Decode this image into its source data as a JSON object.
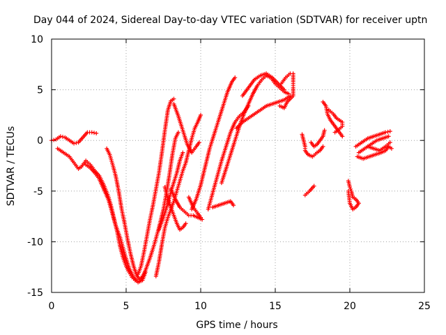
{
  "chart_data": {
    "type": "scatter",
    "title": "Day 044 of 2024, Sidereal Day-to-day VTEC variation (SDTVAR) for receiver uptn",
    "xlabel": "GPS time / hours",
    "ylabel": "SDTVAR / TECUs",
    "xlim": [
      0,
      25
    ],
    "ylim": [
      -15,
      10
    ],
    "xticks": [
      "0",
      "5",
      "10",
      "15",
      "20",
      "25"
    ],
    "yticks": [
      "10",
      "5",
      "0",
      "-5",
      "-10",
      "-15"
    ],
    "grid": true,
    "marker": "+",
    "color": "#ff0000",
    "series": [
      {
        "points": [
          [
            0.0,
            0.0
          ],
          [
            0.3,
            0.1
          ],
          [
            0.6,
            0.4
          ],
          [
            0.9,
            0.3
          ],
          [
            1.2,
            0.0
          ],
          [
            1.5,
            -0.3
          ],
          [
            1.8,
            -0.2
          ],
          [
            2.1,
            0.3
          ],
          [
            2.4,
            0.8
          ],
          [
            2.7,
            0.8
          ],
          [
            3.0,
            0.7
          ]
        ]
      },
      {
        "points": [
          [
            0.4,
            -0.8
          ],
          [
            0.8,
            -1.2
          ],
          [
            1.2,
            -1.6
          ],
          [
            1.5,
            -2.2
          ],
          [
            1.8,
            -2.8
          ],
          [
            2.0,
            -2.6
          ],
          [
            2.3,
            -2.0
          ],
          [
            2.6,
            -2.4
          ],
          [
            2.9,
            -3.0
          ],
          [
            3.2,
            -3.5
          ],
          [
            3.5,
            -4.4
          ],
          [
            3.8,
            -5.5
          ],
          [
            4.0,
            -6.5
          ],
          [
            4.2,
            -7.8
          ],
          [
            4.4,
            -9.0
          ],
          [
            4.6,
            -10.5
          ],
          [
            4.8,
            -11.6
          ],
          [
            5.0,
            -12.4
          ],
          [
            5.2,
            -13.0
          ],
          [
            5.4,
            -13.5
          ],
          [
            5.6,
            -13.8
          ]
        ]
      },
      {
        "points": [
          [
            2.3,
            -2.4
          ],
          [
            2.6,
            -2.7
          ],
          [
            2.9,
            -3.2
          ],
          [
            3.2,
            -3.8
          ],
          [
            3.5,
            -4.8
          ],
          [
            3.8,
            -5.8
          ],
          [
            4.0,
            -6.8
          ],
          [
            4.3,
            -8.4
          ],
          [
            4.6,
            -9.6
          ],
          [
            4.9,
            -11.2
          ],
          [
            5.2,
            -12.6
          ],
          [
            5.5,
            -13.5
          ],
          [
            5.8,
            -14.0
          ],
          [
            6.1,
            -13.8
          ],
          [
            6.3,
            -13.0
          ]
        ]
      },
      {
        "points": [
          [
            3.7,
            -0.8
          ],
          [
            3.9,
            -1.4
          ],
          [
            4.1,
            -2.4
          ],
          [
            4.3,
            -3.5
          ],
          [
            4.5,
            -5.0
          ],
          [
            4.7,
            -6.8
          ],
          [
            4.9,
            -8.2
          ],
          [
            5.1,
            -9.8
          ],
          [
            5.3,
            -11.2
          ],
          [
            5.5,
            -12.4
          ],
          [
            5.7,
            -13.3
          ],
          [
            5.9,
            -13.7
          ],
          [
            6.1,
            -13.4
          ]
        ]
      },
      {
        "points": [
          [
            5.8,
            -13.2
          ],
          [
            6.0,
            -12.4
          ],
          [
            6.2,
            -11.0
          ],
          [
            6.4,
            -9.4
          ],
          [
            6.6,
            -7.8
          ],
          [
            6.8,
            -6.4
          ],
          [
            7.0,
            -4.8
          ],
          [
            7.2,
            -3.2
          ],
          [
            7.4,
            -1.2
          ],
          [
            7.6,
            1.0
          ],
          [
            7.8,
            3.0
          ],
          [
            8.0,
            3.9
          ],
          [
            8.2,
            4.1
          ]
        ]
      },
      {
        "points": [
          [
            6.0,
            -13.8
          ],
          [
            6.3,
            -12.8
          ],
          [
            6.6,
            -11.6
          ],
          [
            6.9,
            -10.2
          ],
          [
            7.2,
            -8.6
          ],
          [
            7.5,
            -6.8
          ],
          [
            7.7,
            -5.2
          ],
          [
            7.9,
            -3.4
          ],
          [
            8.1,
            -1.4
          ],
          [
            8.3,
            0.2
          ],
          [
            8.5,
            0.8
          ]
        ]
      },
      {
        "points": [
          [
            7.0,
            -13.4
          ],
          [
            7.2,
            -12.0
          ],
          [
            7.4,
            -10.2
          ],
          [
            7.6,
            -8.6
          ],
          [
            7.8,
            -7.6
          ],
          [
            8.0,
            -6.8
          ],
          [
            8.2,
            -6.0
          ],
          [
            8.4,
            -5.0
          ],
          [
            8.6,
            -4.0
          ],
          [
            8.8,
            -3.0
          ],
          [
            9.0,
            -2.2
          ],
          [
            9.2,
            -1.0
          ],
          [
            9.4,
            0.2
          ],
          [
            9.6,
            1.2
          ],
          [
            9.8,
            1.8
          ],
          [
            10.0,
            2.5
          ]
        ]
      },
      {
        "points": [
          [
            8.2,
            3.6
          ],
          [
            8.5,
            2.4
          ],
          [
            8.8,
            1.0
          ],
          [
            9.1,
            -0.4
          ],
          [
            9.4,
            -1.2
          ],
          [
            9.7,
            -0.6
          ],
          [
            9.9,
            -0.2
          ]
        ]
      },
      {
        "points": [
          [
            7.6,
            -4.6
          ],
          [
            7.8,
            -5.8
          ],
          [
            8.0,
            -6.6
          ],
          [
            8.2,
            -7.4
          ],
          [
            8.4,
            -8.2
          ],
          [
            8.6,
            -8.8
          ],
          [
            8.8,
            -8.6
          ],
          [
            9.0,
            -8.2
          ]
        ]
      },
      {
        "points": [
          [
            8.0,
            -4.8
          ],
          [
            8.3,
            -5.8
          ],
          [
            8.6,
            -6.6
          ],
          [
            8.9,
            -7.0
          ],
          [
            9.2,
            -7.4
          ],
          [
            9.5,
            -7.4
          ],
          [
            9.8,
            -7.6
          ],
          [
            10.1,
            -7.8
          ]
        ]
      },
      {
        "points": [
          [
            7.2,
            -8.8
          ],
          [
            7.5,
            -7.6
          ],
          [
            7.8,
            -6.2
          ],
          [
            8.1,
            -4.6
          ],
          [
            8.4,
            -3.2
          ],
          [
            8.6,
            -2.0
          ],
          [
            8.8,
            -1.2
          ]
        ]
      },
      {
        "points": [
          [
            9.2,
            -5.6
          ],
          [
            9.5,
            -6.6
          ],
          [
            9.8,
            -7.2
          ],
          [
            10.0,
            -7.6
          ]
        ]
      },
      {
        "points": [
          [
            9.4,
            -6.8
          ],
          [
            9.7,
            -5.8
          ],
          [
            10.0,
            -4.4
          ],
          [
            10.3,
            -2.6
          ],
          [
            10.6,
            -0.8
          ],
          [
            10.9,
            0.6
          ],
          [
            11.2,
            2.0
          ],
          [
            11.5,
            3.4
          ],
          [
            11.8,
            4.8
          ],
          [
            12.1,
            5.8
          ],
          [
            12.3,
            6.2
          ]
        ]
      },
      {
        "points": [
          [
            10.8,
            -6.6
          ],
          [
            11.2,
            -6.4
          ],
          [
            11.6,
            -6.2
          ],
          [
            12.0,
            -6.0
          ],
          [
            12.2,
            -6.4
          ]
        ]
      },
      {
        "points": [
          [
            10.5,
            -6.8
          ],
          [
            10.8,
            -5.2
          ],
          [
            11.1,
            -3.6
          ],
          [
            11.4,
            -2.0
          ],
          [
            11.7,
            -0.6
          ],
          [
            12.0,
            0.8
          ],
          [
            12.3,
            1.8
          ],
          [
            12.6,
            2.4
          ],
          [
            12.9,
            2.8
          ],
          [
            13.2,
            3.4
          ]
        ]
      },
      {
        "points": [
          [
            11.4,
            -4.2
          ],
          [
            11.7,
            -2.8
          ],
          [
            12.0,
            -1.4
          ],
          [
            12.3,
            0.0
          ],
          [
            12.6,
            1.4
          ],
          [
            12.9,
            2.6
          ],
          [
            13.2,
            3.6
          ],
          [
            13.5,
            4.6
          ],
          [
            13.8,
            5.4
          ],
          [
            14.1,
            6.0
          ],
          [
            14.4,
            6.4
          ],
          [
            14.7,
            6.2
          ],
          [
            15.0,
            5.6
          ],
          [
            15.3,
            5.2
          ],
          [
            15.6,
            4.8
          ],
          [
            15.9,
            4.6
          ]
        ]
      },
      {
        "points": [
          [
            12.8,
            4.4
          ],
          [
            13.2,
            5.2
          ],
          [
            13.6,
            6.0
          ],
          [
            14.0,
            6.4
          ],
          [
            14.4,
            6.6
          ],
          [
            14.8,
            6.2
          ],
          [
            15.2,
            5.6
          ],
          [
            15.6,
            5.0
          ]
        ]
      },
      {
        "points": [
          [
            12.4,
            1.2
          ],
          [
            12.8,
            1.8
          ],
          [
            13.2,
            2.2
          ],
          [
            13.6,
            2.6
          ],
          [
            14.0,
            3.0
          ],
          [
            14.4,
            3.4
          ],
          [
            14.8,
            3.6
          ],
          [
            15.2,
            3.8
          ],
          [
            15.6,
            4.0
          ],
          [
            16.0,
            4.4
          ]
        ]
      },
      {
        "points": [
          [
            15.4,
            5.6
          ],
          [
            15.7,
            6.2
          ],
          [
            16.0,
            6.6
          ],
          [
            16.2,
            6.6
          ],
          [
            16.2,
            5.8
          ],
          [
            16.2,
            5.2
          ],
          [
            16.2,
            4.4
          ],
          [
            15.8,
            3.8
          ],
          [
            15.6,
            3.2
          ],
          [
            15.3,
            3.4
          ]
        ]
      },
      {
        "points": [
          [
            16.8,
            0.6
          ],
          [
            16.9,
            0.0
          ],
          [
            17.0,
            -0.6
          ],
          [
            17.0,
            -1.0
          ],
          [
            17.2,
            -1.4
          ],
          [
            17.5,
            -1.6
          ],
          [
            17.8,
            -1.2
          ],
          [
            18.0,
            -1.0
          ],
          [
            18.2,
            -0.6
          ]
        ]
      },
      {
        "points": [
          [
            17.4,
            -0.2
          ],
          [
            17.6,
            -0.6
          ],
          [
            17.8,
            -0.4
          ],
          [
            18.0,
            0.0
          ],
          [
            18.2,
            0.4
          ],
          [
            18.3,
            1.0
          ]
        ]
      },
      {
        "points": [
          [
            17.0,
            -5.4
          ],
          [
            17.3,
            -5.0
          ],
          [
            17.6,
            -4.5
          ]
        ]
      },
      {
        "points": [
          [
            18.2,
            3.8
          ],
          [
            18.4,
            3.4
          ],
          [
            18.5,
            2.6
          ],
          [
            18.7,
            2.0
          ],
          [
            18.9,
            1.6
          ],
          [
            19.1,
            1.2
          ],
          [
            19.3,
            0.8
          ],
          [
            19.5,
            0.4
          ]
        ]
      },
      {
        "points": [
          [
            18.6,
            3.0
          ],
          [
            18.9,
            2.6
          ],
          [
            19.1,
            2.2
          ],
          [
            19.3,
            2.0
          ],
          [
            19.5,
            1.8
          ],
          [
            19.5,
            1.4
          ],
          [
            19.2,
            1.0
          ],
          [
            19.0,
            0.8
          ]
        ]
      },
      {
        "points": [
          [
            19.9,
            -4.0
          ],
          [
            20.0,
            -4.6
          ],
          [
            20.1,
            -5.0
          ],
          [
            20.2,
            -5.6
          ],
          [
            20.4,
            -5.8
          ],
          [
            20.6,
            -6.2
          ],
          [
            20.4,
            -6.6
          ],
          [
            20.2,
            -6.8
          ],
          [
            20.0,
            -6.2
          ],
          [
            19.9,
            -5.0
          ]
        ]
      },
      {
        "points": [
          [
            20.4,
            -0.6
          ],
          [
            20.8,
            -0.2
          ],
          [
            21.2,
            0.2
          ],
          [
            21.6,
            0.4
          ],
          [
            22.0,
            0.6
          ],
          [
            22.4,
            0.8
          ],
          [
            22.7,
            0.9
          ]
        ]
      },
      {
        "points": [
          [
            20.6,
            -1.2
          ],
          [
            21.0,
            -0.8
          ],
          [
            21.4,
            -0.4
          ],
          [
            21.8,
            0.0
          ],
          [
            22.2,
            0.2
          ],
          [
            22.6,
            0.4
          ]
        ]
      },
      {
        "points": [
          [
            20.5,
            -1.6
          ],
          [
            20.9,
            -1.8
          ],
          [
            21.3,
            -1.6
          ],
          [
            21.7,
            -1.4
          ],
          [
            22.1,
            -1.2
          ],
          [
            22.4,
            -1.0
          ],
          [
            22.6,
            -0.6
          ],
          [
            22.8,
            -0.8
          ]
        ]
      },
      {
        "points": [
          [
            21.2,
            -0.6
          ],
          [
            21.6,
            -0.8
          ],
          [
            22.0,
            -1.0
          ],
          [
            22.4,
            -0.6
          ],
          [
            22.7,
            -0.2
          ]
        ]
      }
    ]
  }
}
